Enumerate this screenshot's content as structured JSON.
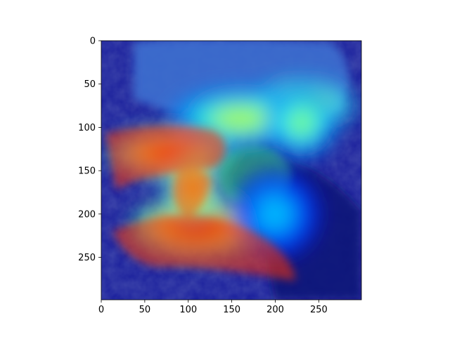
{
  "chart_data": {
    "type": "heatmap",
    "description_kind": "image-with-attention-overlay",
    "colormap": "jet",
    "overlay_alpha": 0.5,
    "xlim": [
      0,
      299
    ],
    "ylim": [
      299,
      0
    ],
    "x_ticks": [
      0,
      50,
      100,
      150,
      200,
      250
    ],
    "y_ticks": [
      0,
      50,
      100,
      150,
      200,
      250
    ],
    "x_tick_labels": [
      "0",
      "50",
      "100",
      "150",
      "200",
      "250"
    ],
    "y_tick_labels": [
      "0",
      "50",
      "100",
      "150",
      "200",
      "250"
    ],
    "hotspots": [
      {
        "x": 80,
        "y": 130,
        "intensity": 0.95,
        "rx": 70,
        "ry": 28
      },
      {
        "x": 110,
        "y": 215,
        "intensity": 1.0,
        "rx": 75,
        "ry": 35
      },
      {
        "x": 105,
        "y": 170,
        "intensity": 0.85,
        "rx": 30,
        "ry": 40
      },
      {
        "x": 230,
        "y": 75,
        "intensity": 0.75,
        "rx": 60,
        "ry": 30
      },
      {
        "x": 160,
        "y": 90,
        "intensity": 0.6,
        "rx": 80,
        "ry": 35
      },
      {
        "x": 230,
        "y": 95,
        "intensity": 0.55,
        "rx": 40,
        "ry": 40
      },
      {
        "x": 200,
        "y": 200,
        "intensity": 0.35,
        "rx": 50,
        "ry": 50
      }
    ],
    "title": "",
    "xlabel": "",
    "ylabel": ""
  }
}
